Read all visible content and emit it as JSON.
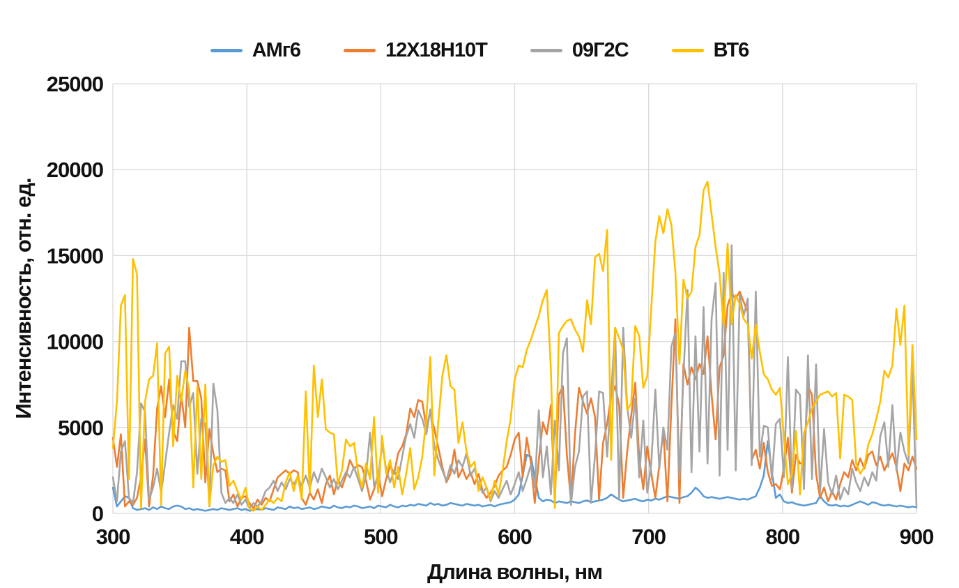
{
  "chart_data": {
    "type": "line",
    "title": "",
    "xlabel": "Длина волны, нм",
    "ylabel": "Интенсивность, отн. ед.",
    "x_ticks": [
      300,
      400,
      500,
      600,
      700,
      800,
      900
    ],
    "y_ticks": [
      0,
      5000,
      10000,
      15000,
      20000,
      25000
    ],
    "xlim": [
      300,
      900
    ],
    "ylim": [
      0,
      25000
    ],
    "x_start": 300,
    "x_step": 3,
    "grid": true,
    "legend_position": "top",
    "colors": {
      "grid": "#D9D9D9",
      "text": "#111111",
      "background": "#FFFFFF"
    },
    "series": [
      {
        "name": "АМг6",
        "slug": "amg6",
        "color": "#5B9BD5",
        "values": [
          1500,
          400,
          700,
          1000,
          900,
          300,
          200,
          250,
          300,
          200,
          350,
          250,
          400,
          300,
          250,
          400,
          450,
          400,
          250,
          300,
          200,
          250,
          200,
          150,
          200,
          250,
          200,
          300,
          250,
          200,
          250,
          300,
          200,
          250,
          150,
          200,
          250,
          200,
          300,
          250,
          200,
          350,
          300,
          250,
          400,
          300,
          350,
          250,
          300,
          350,
          250,
          300,
          400,
          350,
          300,
          450,
          350,
          300,
          400,
          350,
          450,
          400,
          300,
          350,
          400,
          300,
          450,
          400,
          350,
          500,
          400,
          350,
          450,
          400,
          500,
          450,
          550,
          500,
          450,
          600,
          500,
          550,
          450,
          500,
          600,
          550,
          500,
          450,
          550,
          500,
          450,
          500,
          400,
          450,
          500,
          400,
          500,
          550,
          600,
          650,
          800,
          1100,
          2200,
          3400,
          3300,
          2100,
          900,
          700,
          800,
          750,
          600,
          700,
          650,
          600,
          700,
          650,
          600,
          700,
          750,
          650,
          700,
          750,
          800,
          900,
          1100,
          950,
          800,
          700,
          750,
          800,
          850,
          750,
          700,
          800,
          750,
          850,
          800,
          900,
          1000,
          950,
          900,
          850,
          950,
          1000,
          1200,
          1500,
          1300,
          1000,
          900,
          950,
          900,
          850,
          900,
          950,
          900,
          850,
          800,
          850,
          800,
          900,
          1000,
          1500,
          2200,
          4200,
          2400,
          900,
          1100,
          700,
          600,
          650,
          550,
          500,
          450,
          500,
          550,
          600,
          1000,
          700,
          500,
          450,
          500,
          400,
          450,
          400,
          500,
          600,
          700,
          600,
          500,
          650,
          600,
          500,
          450,
          500,
          450,
          400,
          450,
          400,
          350,
          400,
          350
        ]
      },
      {
        "name": "12Х18Н10Т",
        "slug": "12x18n10t",
        "color": "#ED7D31",
        "values": [
          4400,
          2700,
          4600,
          400,
          700,
          500,
          900,
          2100,
          4300,
          400,
          2200,
          6100,
          7400,
          5600,
          7800,
          4800,
          4200,
          6900,
          5000,
          10800,
          7700,
          7700,
          6700,
          1800,
          4900,
          3500,
          2400,
          2600,
          2500,
          700,
          1100,
          400,
          900,
          1000,
          600,
          300,
          800,
          500,
          900,
          700,
          1400,
          2100,
          2300,
          2500,
          2300,
          2500,
          2400,
          900,
          500,
          1200,
          800,
          1400,
          600,
          1700,
          2200,
          1100,
          2000,
          1500,
          2200,
          3100,
          2600,
          2800,
          2700,
          1900,
          800,
          1400,
          2300,
          1000,
          2000,
          2800,
          2300,
          3500,
          3900,
          4600,
          6100,
          5600,
          6600,
          6500,
          5000,
          5900,
          4900,
          3800,
          2700,
          1800,
          2300,
          3700,
          2100,
          2600,
          2000,
          2400,
          1700,
          2300,
          1300,
          900,
          1200,
          1600,
          2200,
          2500,
          2700,
          3400,
          4300,
          4700,
          2100,
          4400,
          3000,
          600,
          3100,
          5300,
          4600,
          6300,
          700,
          6900,
          7400,
          3400,
          700,
          4600,
          7300,
          6500,
          5800,
          6700,
          5600,
          800,
          4100,
          5200,
          6800,
          7400,
          6300,
          900,
          3600,
          5700,
          7600,
          3200,
          1400,
          3900,
          2300,
          900,
          2800,
          4800,
          700,
          6200,
          11300,
          600,
          8700,
          7500,
          8500,
          7800,
          8700,
          8100,
          10300,
          6900,
          4300,
          8500,
          9200,
          12100,
          12800,
          12500,
          12900,
          12300,
          11700,
          3100,
          3700,
          2600,
          4100,
          2400,
          1600,
          1700,
          1400,
          2600,
          4400,
          1200,
          3400,
          2900,
          3000,
          7400,
          6900,
          2300,
          900,
          1500,
          700,
          1300,
          800,
          1700,
          2400,
          2100,
          3100,
          2500,
          3200,
          2600,
          3400,
          3600,
          2800,
          3300,
          2500,
          3000,
          3500,
          2700,
          1300,
          2900,
          2500,
          3300,
          2600
        ]
      },
      {
        "name": "09Г2С",
        "slug": "09g2s",
        "color": "#A5A5A5",
        "values": [
          2100,
          700,
          3600,
          4200,
          900,
          600,
          2400,
          6400,
          5900,
          800,
          1500,
          2600,
          1200,
          2900,
          4700,
          6300,
          5500,
          8850,
          8850,
          6200,
          7000,
          2300,
          5500,
          5200,
          400,
          7550,
          6000,
          1200,
          600,
          900,
          600,
          1100,
          500,
          800,
          300,
          600,
          400,
          700,
          1300,
          1500,
          1900,
          1300,
          1800,
          1400,
          2000,
          1700,
          2100,
          1600,
          2200,
          1500,
          2400,
          1800,
          2600,
          2100,
          1500,
          2000,
          1400,
          1900,
          2400,
          2100,
          2700,
          2000,
          1300,
          2200,
          4700,
          1600,
          2100,
          4000,
          2600,
          1800,
          2500,
          2000,
          3300,
          4500,
          5200,
          4400,
          6000,
          5500,
          4600,
          6050,
          3900,
          3100,
          2500,
          1900,
          2800,
          2300,
          3100,
          2700,
          3500,
          2200,
          2600,
          1700,
          1200,
          1500,
          700,
          1300,
          900,
          1400,
          1900,
          1100,
          1700,
          2400,
          1300,
          2000,
          2800,
          1500,
          6000,
          2100,
          3900,
          1100,
          5400,
          2500,
          9300,
          10200,
          500,
          2700,
          3600,
          6800,
          7100,
          600,
          3400,
          7100,
          7000,
          3300,
          6900,
          10800,
          800,
          10800,
          6200,
          4400,
          6700,
          2100,
          5400,
          1200,
          2900,
          7200,
          2600,
          5000,
          3700,
          9700,
          10500,
          2000,
          8000,
          13000,
          2400,
          10300,
          3600,
          12000,
          2900,
          11300,
          13400,
          2200,
          14000,
          3700,
          15600,
          2500,
          12700,
          11500,
          12500,
          2800,
          12900,
          3300,
          5100,
          5000,
          2000,
          5200,
          5500,
          2100,
          9100,
          1400,
          7200,
          6900,
          1400,
          9190,
          2000,
          8670,
          1200,
          4900,
          1800,
          1100,
          2200,
          800,
          1500,
          1100,
          2600,
          1800,
          1300,
          2100,
          1600,
          2400,
          1900,
          4500,
          5300,
          2700,
          6300,
          2500,
          4700,
          3600,
          2900,
          8470,
          400
        ]
      },
      {
        "name": "ВТ6",
        "slug": "vt6",
        "color": "#FFC000",
        "values": [
          3800,
          6500,
          12100,
          12700,
          2000,
          14800,
          13900,
          300,
          6500,
          7800,
          8000,
          9900,
          500,
          9300,
          9700,
          3900,
          8000,
          6500,
          8300,
          7200,
          1500,
          7400,
          2000,
          7500,
          400,
          2800,
          3300,
          3000,
          3100,
          1600,
          1900,
          1300,
          800,
          1500,
          300,
          150,
          400,
          200,
          500,
          800,
          600,
          900,
          700,
          1800,
          2400,
          1300,
          2200,
          800,
          7100,
          1200,
          8600,
          5600,
          7800,
          4900,
          4700,
          4600,
          1700,
          2500,
          4300,
          3900,
          4100,
          2400,
          1500,
          2900,
          2000,
          5600,
          1200,
          4500,
          2300,
          3100,
          1500,
          2700,
          1100,
          2300,
          3800,
          1400,
          2100,
          3300,
          5500,
          9100,
          2200,
          5400,
          8000,
          9200,
          7400,
          7200,
          4100,
          5300,
          3600,
          2700,
          3000,
          1300,
          2100,
          1500,
          800,
          1900,
          1100,
          2500,
          4200,
          5500,
          7800,
          8600,
          8500,
          9500,
          10100,
          10800,
          11500,
          12400,
          13000,
          8400,
          300,
          10500,
          10900,
          11200,
          11300,
          10700,
          10300,
          9400,
          12400,
          11000,
          14900,
          15100,
          14100,
          16500,
          3100,
          10800,
          10200,
          9500,
          6000,
          6400,
          10900,
          10300,
          7300,
          8000,
          12000,
          15800,
          17300,
          16300,
          17700,
          16800,
          14000,
          8700,
          13600,
          12500,
          12900,
          15500,
          16200,
          18800,
          19300,
          17400,
          15500,
          13900,
          10900,
          15700,
          11000,
          12700,
          12200,
          11300,
          11000,
          9000,
          11000,
          9400,
          8100,
          7800,
          7200,
          6900,
          7300,
          4400,
          1700,
          2300,
          4800,
          1100,
          4700,
          5300,
          6100,
          6500,
          6900,
          7000,
          7100,
          6800,
          7000,
          3200,
          6900,
          6800,
          6600,
          2900,
          2300,
          2700,
          4000,
          4600,
          5500,
          6500,
          8300,
          7900,
          8600,
          11900,
          9800,
          12100,
          3400,
          9800,
          4300
        ]
      }
    ]
  }
}
